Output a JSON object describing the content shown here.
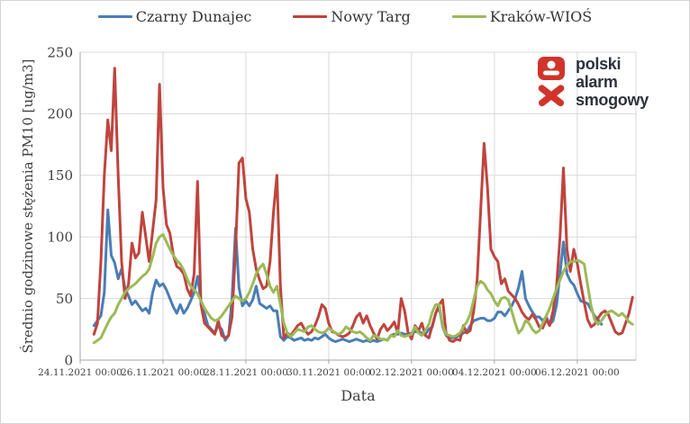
{
  "legend": [
    {
      "label": "Czarny Dunajec",
      "color": "#4a7db6"
    },
    {
      "label": "Nowy Targ",
      "color": "#bf443d"
    },
    {
      "label": "Kraków-WIOŚ",
      "color": "#9cba58"
    }
  ],
  "logo": {
    "line1": "polski",
    "line2": "alarm",
    "line3": "smogowy",
    "mark_color": "#d0342b",
    "text_color": "#2e323c"
  },
  "chart_data": {
    "type": "line",
    "title": "",
    "xlabel": "Data",
    "ylabel": "Średnio godzinowe stężenia PM10 [ug/m3]",
    "ylim": [
      0,
      250
    ],
    "yticks": [
      0,
      50,
      100,
      150,
      200,
      250
    ],
    "grid": true,
    "legend_position": "top",
    "x_unit": "hours since 24.11.2021 00:00",
    "x_range_hours": [
      0,
      322
    ],
    "start_hour": 8,
    "sample_step_hours": 2,
    "x_tick_hours": [
      0,
      48,
      96,
      144,
      192,
      240,
      288
    ],
    "x_tick_labels": [
      "24.11.2021 00:00",
      "26.11.2021 00:00",
      "28.11.2021 00:00",
      "30.11.2021 00:00",
      "02.12.2021 00:00",
      "04.12.2021 00:00",
      "06.12.2021 00:00"
    ],
    "series": [
      {
        "name": "Czarny Dunajec",
        "color": "#4a7db6",
        "values": [
          28,
          32,
          36,
          55,
          122,
          85,
          79,
          66,
          74,
          58,
          52,
          45,
          48,
          44,
          40,
          42,
          38,
          55,
          65,
          60,
          62,
          57,
          50,
          43,
          38,
          45,
          38,
          42,
          48,
          55,
          68,
          48,
          38,
          28,
          25,
          22,
          28,
          25,
          16,
          20,
          50,
          107,
          59,
          44,
          48,
          44,
          49,
          60,
          46,
          44,
          42,
          44,
          40,
          40,
          19,
          16,
          19,
          18,
          16,
          17,
          18,
          16,
          17,
          16,
          18,
          17,
          19,
          21,
          18,
          16,
          15,
          16,
          17,
          16,
          15,
          16,
          17,
          16,
          15,
          16,
          15,
          16,
          15,
          16,
          17,
          16,
          20,
          21,
          21,
          22,
          21,
          21,
          22,
          23,
          23,
          22,
          21,
          25,
          27,
          38,
          43,
          27,
          20,
          18,
          18,
          19,
          20,
          22,
          23,
          28,
          32,
          33,
          34,
          34,
          32,
          32,
          34,
          39,
          39,
          36,
          40,
          44,
          50,
          59,
          72,
          50,
          44,
          39,
          35,
          35,
          32,
          35,
          29,
          32,
          45,
          70,
          96,
          70,
          64,
          61,
          54,
          48,
          47,
          46,
          41,
          36,
          33,
          29,
          null,
          null,
          null,
          null,
          null,
          null,
          null,
          null,
          null
        ]
      },
      {
        "name": "Nowy Targ",
        "color": "#bf443d",
        "values": [
          21,
          30,
          80,
          150,
          195,
          170,
          237,
          150,
          80,
          50,
          62,
          95,
          83,
          87,
          120,
          100,
          80,
          105,
          130,
          224,
          140,
          110,
          103,
          85,
          76,
          74,
          70,
          58,
          52,
          70,
          145,
          45,
          30,
          27,
          24,
          21,
          32,
          20,
          18,
          20,
          35,
          90,
          160,
          164,
          131,
          120,
          90,
          74,
          65,
          58,
          60,
          80,
          120,
          150,
          60,
          18,
          22,
          20,
          24,
          28,
          30,
          25,
          21,
          23,
          28,
          35,
          45,
          42,
          30,
          23,
          22,
          20,
          19,
          20,
          22,
          28,
          35,
          38,
          30,
          36,
          28,
          22,
          17,
          25,
          29,
          24,
          27,
          31,
          22,
          50,
          40,
          22,
          17,
          28,
          24,
          30,
          20,
          18,
          28,
          38,
          45,
          49,
          22,
          16,
          15,
          17,
          16,
          28,
          22,
          24,
          40,
          65,
          120,
          176,
          140,
          90,
          84,
          80,
          62,
          66,
          56,
          53,
          50,
          45,
          39,
          35,
          33,
          37,
          33,
          27,
          26,
          33,
          28,
          40,
          60,
          100,
          156,
          90,
          72,
          90,
          78,
          62,
          47,
          33,
          27,
          29,
          34,
          38,
          40,
          37,
          30,
          23,
          21,
          22,
          30,
          38,
          51
        ]
      },
      {
        "name": "Kraków-WIOŚ",
        "color": "#9cba58",
        "values": [
          14,
          16,
          18,
          24,
          30,
          35,
          38,
          45,
          50,
          55,
          58,
          60,
          62,
          65,
          68,
          70,
          74,
          84,
          95,
          100,
          102,
          96,
          90,
          85,
          81,
          78,
          73,
          66,
          60,
          57,
          54,
          48,
          42,
          38,
          34,
          32,
          33,
          36,
          40,
          44,
          48,
          52,
          50,
          48,
          50,
          55,
          62,
          70,
          75,
          78,
          70,
          60,
          55,
          60,
          45,
          30,
          22,
          19,
          22,
          25,
          24,
          23,
          27,
          28,
          25,
          23,
          22,
          23,
          26,
          24,
          22,
          21,
          23,
          27,
          25,
          23,
          22,
          23,
          21,
          18,
          16,
          20,
          19,
          17,
          17,
          16,
          20,
          19,
          24,
          20,
          19,
          20,
          21,
          27,
          22,
          20,
          24,
          29,
          39,
          45,
          45,
          28,
          21,
          20,
          19,
          20,
          22,
          27,
          31,
          37,
          49,
          60,
          64,
          62,
          57,
          54,
          48,
          44,
          50,
          51,
          49,
          40,
          30,
          22,
          25,
          32,
          30,
          25,
          22,
          24,
          30,
          36,
          42,
          50,
          58,
          65,
          72,
          77,
          80,
          80,
          81,
          80,
          78,
          61,
          44,
          33,
          29,
          32,
          36,
          39,
          40,
          38,
          36,
          38,
          35,
          31,
          29
        ]
      }
    ]
  }
}
